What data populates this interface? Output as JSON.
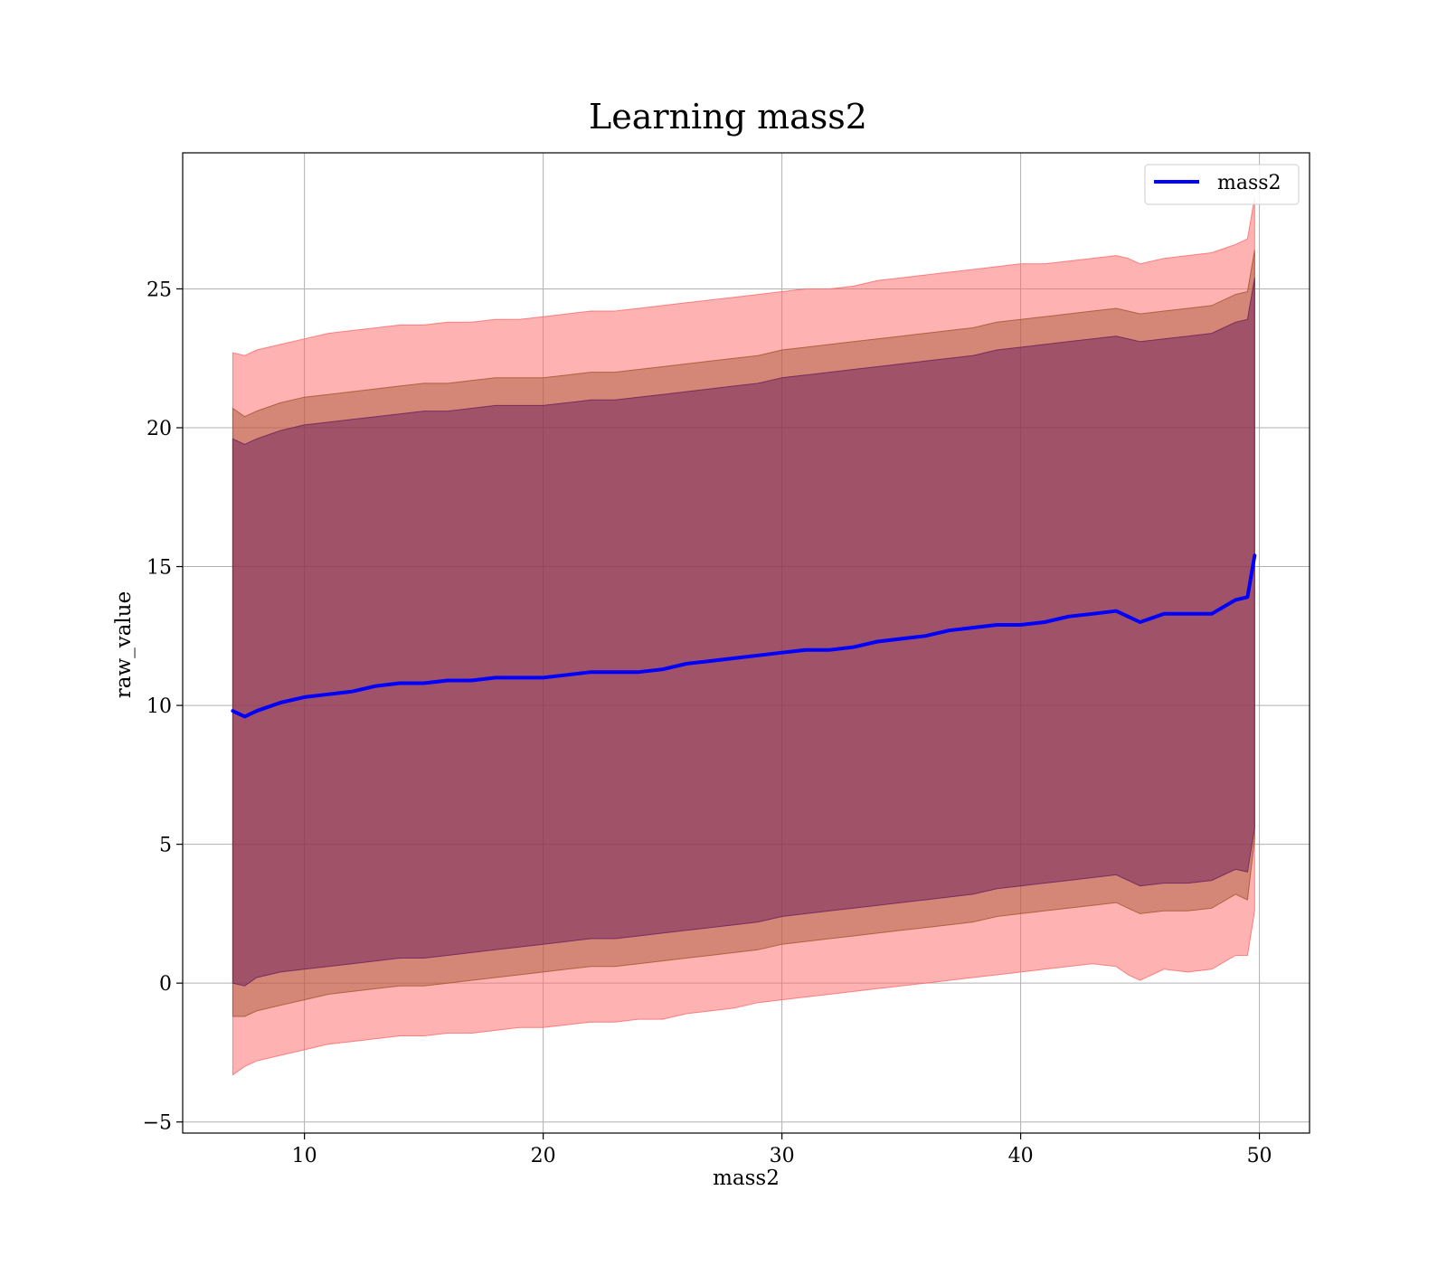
{
  "chart_data": {
    "type": "area",
    "title": "Learning mass2",
    "xlabel": "mass2",
    "ylabel": "raw_value",
    "xlim": [
      4.9,
      52.1
    ],
    "ylim": [
      -5.4,
      29.9
    ],
    "xticks": [
      10,
      20,
      30,
      40,
      50
    ],
    "yticks": [
      -5,
      0,
      5,
      10,
      15,
      20,
      25
    ],
    "ytick_labels": [
      "−5",
      "0",
      "5",
      "10",
      "15",
      "20",
      "25"
    ],
    "grid": true,
    "legend": {
      "placement": "top-right",
      "entries": [
        "mass2"
      ]
    },
    "x": [
      7.0,
      7.5,
      8,
      9,
      10,
      11,
      12,
      13,
      14,
      15,
      16,
      17,
      18,
      19,
      20,
      21,
      22,
      23,
      24,
      25,
      26,
      27,
      28,
      29,
      30,
      31,
      32,
      33,
      34,
      35,
      36,
      37,
      38,
      39,
      40,
      41,
      42,
      43,
      44,
      44.5,
      45,
      46,
      47,
      48,
      49,
      49.5,
      49.8
    ],
    "series": [
      {
        "name": "mass2",
        "values": [
          9.8,
          9.6,
          9.8,
          10.1,
          10.3,
          10.4,
          10.5,
          10.7,
          10.8,
          10.8,
          10.9,
          10.9,
          11.0,
          11.0,
          11.0,
          11.1,
          11.2,
          11.2,
          11.2,
          11.3,
          11.5,
          11.6,
          11.7,
          11.8,
          11.9,
          12.0,
          12.0,
          12.1,
          12.3,
          12.4,
          12.5,
          12.7,
          12.8,
          12.9,
          12.9,
          13.0,
          13.2,
          13.3,
          13.4,
          13.2,
          13.0,
          13.3,
          13.3,
          13.3,
          13.8,
          13.9,
          15.4
        ]
      },
      {
        "name": "",
        "lower": [
          -3.3,
          -3.0,
          -2.8,
          -2.6,
          -2.4,
          -2.2,
          -2.1,
          -2.0,
          -1.9,
          -1.9,
          -1.8,
          -1.8,
          -1.7,
          -1.6,
          -1.6,
          -1.5,
          -1.4,
          -1.4,
          -1.3,
          -1.3,
          -1.1,
          -1.0,
          -0.9,
          -0.7,
          -0.6,
          -0.5,
          -0.4,
          -0.3,
          -0.2,
          -0.1,
          0.0,
          0.1,
          0.2,
          0.3,
          0.4,
          0.5,
          0.6,
          0.7,
          0.6,
          0.3,
          0.1,
          0.5,
          0.4,
          0.5,
          1.0,
          1.0,
          2.6
        ],
        "upper": [
          22.7,
          22.6,
          22.8,
          23.0,
          23.2,
          23.4,
          23.5,
          23.6,
          23.7,
          23.7,
          23.8,
          23.8,
          23.9,
          23.9,
          24.0,
          24.1,
          24.2,
          24.2,
          24.3,
          24.4,
          24.5,
          24.6,
          24.7,
          24.8,
          24.9,
          25.0,
          25.0,
          25.1,
          25.3,
          25.4,
          25.5,
          25.6,
          25.7,
          25.8,
          25.9,
          25.9,
          26.0,
          26.1,
          26.2,
          26.1,
          25.9,
          26.1,
          26.2,
          26.3,
          26.6,
          26.8,
          28.3
        ]
      },
      {
        "name": "",
        "lower": [
          -1.2,
          -1.2,
          -1.0,
          -0.8,
          -0.6,
          -0.4,
          -0.3,
          -0.2,
          -0.1,
          -0.1,
          0.0,
          0.1,
          0.2,
          0.3,
          0.4,
          0.5,
          0.6,
          0.6,
          0.7,
          0.8,
          0.9,
          1.0,
          1.1,
          1.2,
          1.4,
          1.5,
          1.6,
          1.7,
          1.8,
          1.9,
          2.0,
          2.1,
          2.2,
          2.4,
          2.5,
          2.6,
          2.7,
          2.8,
          2.9,
          2.7,
          2.5,
          2.6,
          2.6,
          2.7,
          3.2,
          3.0,
          5.2
        ],
        "upper": [
          20.7,
          20.4,
          20.6,
          20.9,
          21.1,
          21.2,
          21.3,
          21.4,
          21.5,
          21.6,
          21.6,
          21.7,
          21.8,
          21.8,
          21.8,
          21.9,
          22.0,
          22.0,
          22.1,
          22.2,
          22.3,
          22.4,
          22.5,
          22.6,
          22.8,
          22.9,
          23.0,
          23.1,
          23.2,
          23.3,
          23.4,
          23.5,
          23.6,
          23.8,
          23.9,
          24.0,
          24.1,
          24.2,
          24.3,
          24.2,
          24.1,
          24.2,
          24.3,
          24.4,
          24.8,
          24.9,
          26.4
        ]
      },
      {
        "name": "",
        "lower": [
          0.0,
          -0.1,
          0.2,
          0.4,
          0.5,
          0.6,
          0.7,
          0.8,
          0.9,
          0.9,
          1.0,
          1.1,
          1.2,
          1.3,
          1.4,
          1.5,
          1.6,
          1.6,
          1.7,
          1.8,
          1.9,
          2.0,
          2.1,
          2.2,
          2.4,
          2.5,
          2.6,
          2.7,
          2.8,
          2.9,
          3.0,
          3.1,
          3.2,
          3.4,
          3.5,
          3.6,
          3.7,
          3.8,
          3.9,
          3.7,
          3.5,
          3.6,
          3.6,
          3.7,
          4.1,
          4.0,
          5.6
        ],
        "upper": [
          19.6,
          19.4,
          19.6,
          19.9,
          20.1,
          20.2,
          20.3,
          20.4,
          20.5,
          20.6,
          20.6,
          20.7,
          20.8,
          20.8,
          20.8,
          20.9,
          21.0,
          21.0,
          21.1,
          21.2,
          21.3,
          21.4,
          21.5,
          21.6,
          21.8,
          21.9,
          22.0,
          22.1,
          22.2,
          22.3,
          22.4,
          22.5,
          22.6,
          22.8,
          22.9,
          23.0,
          23.1,
          23.2,
          23.3,
          23.2,
          23.1,
          23.2,
          23.3,
          23.4,
          23.8,
          23.9,
          25.4
        ]
      }
    ],
    "colors": {
      "line": "#0000ff",
      "band_outer": "#ff6666",
      "band_middle": "#a0522d",
      "band_inner": "#6a1e5a",
      "grid": "#b0b0b0"
    }
  }
}
